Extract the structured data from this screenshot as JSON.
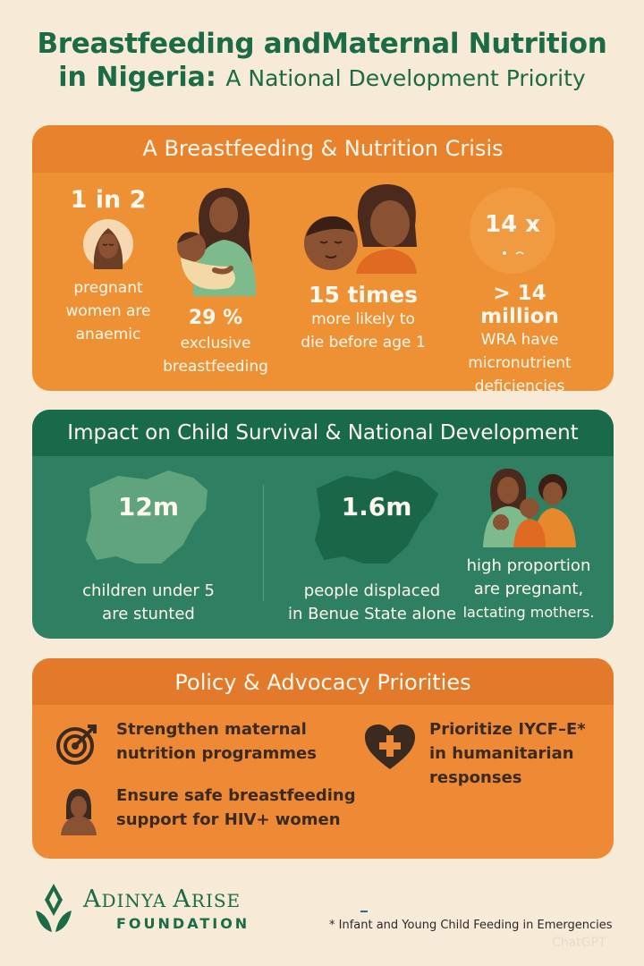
{
  "title": {
    "line1": "Breastfeeding andMaternal Nutrition",
    "line2_main": "in Nigeria:",
    "line2_sub": "A National Development Priority"
  },
  "crisis": {
    "heading": "A Breastfeeding & Nutrition Crisis",
    "stats": [
      {
        "value": "1 in 2",
        "label": [
          "pregnant",
          "women are",
          "anaemic"
        ]
      },
      {
        "value": "29 %",
        "label": [
          "exclusive",
          "breastfeeding"
        ]
      },
      {
        "value": "15 times",
        "label": [
          "more likely to",
          "die before age 1"
        ]
      },
      {
        "value": "14 x",
        "value2": "> 14 million",
        "label": [
          "WRA have",
          "micronutrient",
          "deficiencies"
        ]
      }
    ]
  },
  "impact": {
    "heading": "Impact on Child Survival & National Development",
    "stats": [
      {
        "value": "12m",
        "label": [
          "children under 5",
          "are stunted"
        ]
      },
      {
        "value": "1.6m",
        "label": [
          "people displaced",
          "in Benue State alone"
        ]
      },
      {
        "label": [
          "high proportion",
          "are pregnant,",
          "lactating mothers."
        ]
      }
    ]
  },
  "policy": {
    "heading": "Policy & Advocacy Priorities",
    "items": [
      {
        "icon": "target-icon",
        "text": [
          "Strengthen maternal",
          "nutrition programmes"
        ]
      },
      {
        "icon": "heart-plus-icon",
        "text": [
          "Prioritize IYCF–E*",
          "in humanitarian",
          "responses"
        ]
      },
      {
        "icon": "woman-icon",
        "text": [
          "Ensure safe breastfeeding",
          "support for HIV+ women"
        ]
      }
    ]
  },
  "footer": {
    "org_a": "A",
    "org_b": "DINYA ",
    "org_c": "A",
    "org_d": "RISE",
    "org_sub": "FOUNDATION",
    "footnote": "* Infant and Young Child Feeding in Emergencies",
    "watermark": "ChatGPT"
  },
  "colors": {
    "green": "#1b6b46",
    "orange": "#ee9135",
    "teal": "#2f8062",
    "cream": "#f7ead6"
  }
}
